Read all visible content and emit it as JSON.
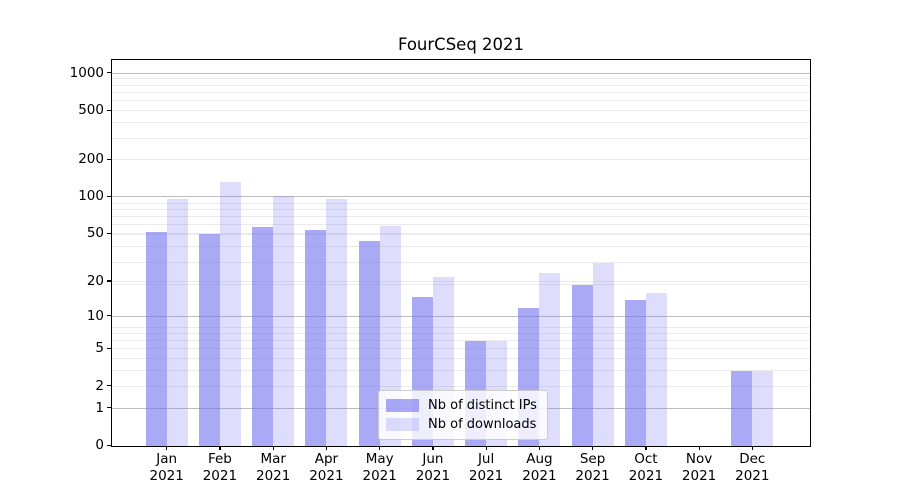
{
  "title": "FourCSeq 2021",
  "colors": {
    "bar_base": "#7575f1",
    "ips_bar": "rgba(117,117,241,0.62)",
    "downloads_bar": "rgba(117,117,241,0.24)",
    "grid_major": "#bdbdbd",
    "grid_minor": "#ebebeb",
    "spine": "#000000",
    "legend_border": "#cccccc"
  },
  "chart_data": {
    "type": "bar",
    "title": "FourCSeq 2021",
    "categories": [
      "Jan 2021",
      "Feb 2021",
      "Mar 2021",
      "Apr 2021",
      "May 2021",
      "Jun 2021",
      "Jul 2021",
      "Aug 2021",
      "Sep 2021",
      "Oct 2021",
      "Nov 2021",
      "Dec 2021"
    ],
    "series": [
      {
        "name": "Nb of distinct IPs",
        "values": [
          52,
          50,
          57,
          54,
          44,
          15,
          6,
          12,
          19,
          14,
          0,
          3
        ]
      },
      {
        "name": "Nb of downloads",
        "values": [
          97,
          133,
          103,
          97,
          58,
          22,
          6,
          24,
          29,
          16,
          0,
          3
        ]
      }
    ],
    "xlabel": "",
    "ylabel": "",
    "yscale": "log1p",
    "yticks": [
      0,
      1,
      2,
      5,
      10,
      20,
      50,
      100,
      200,
      500,
      1000
    ],
    "ytick_labels": [
      "0",
      "1",
      "2",
      "5",
      "10",
      "20",
      "50",
      "100",
      "200",
      "500",
      "1000"
    ],
    "major_grid_values": [
      1,
      10,
      100,
      1000
    ],
    "ylim": [
      0,
      1282
    ],
    "grid": true,
    "legend_position": "inside-lower-center"
  }
}
